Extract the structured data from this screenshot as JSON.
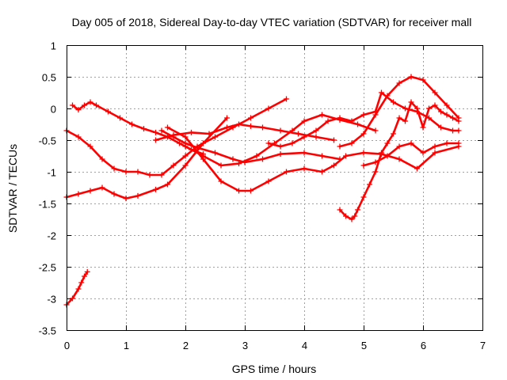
{
  "chart_data": {
    "type": "line",
    "title": "Day 005 of 2018, Sidereal Day-to-day VTEC variation (SDTVAR) for receiver mall",
    "xlabel": "GPS time / hours",
    "ylabel": "SDTVAR / TECUs",
    "xlim": [
      0,
      7
    ],
    "ylim": [
      -3.5,
      1
    ],
    "xticks": [
      0,
      1,
      2,
      3,
      4,
      5,
      6,
      7
    ],
    "yticks": [
      -3.5,
      -3,
      -2.5,
      -2,
      -1.5,
      -1,
      -0.5,
      0,
      0.5,
      1
    ],
    "xtick_labels": [
      "0",
      "1",
      "2",
      "3",
      "4",
      "5",
      "6",
      "7"
    ],
    "ytick_labels": [
      "-3.5",
      "-3",
      "-2.5",
      "-2",
      "-1.5",
      "-1",
      "-0.5",
      "0",
      "0.5",
      "1"
    ],
    "grid": true,
    "legend": "none",
    "series_color": "#ff0000",
    "marker": "cross",
    "series": [
      {
        "name": "s1",
        "x": [
          0.0,
          0.1,
          0.2,
          0.25,
          0.3,
          0.35
        ],
        "y": [
          -3.1,
          -3.0,
          -2.85,
          -2.75,
          -2.65,
          -2.58
        ]
      },
      {
        "name": "s2",
        "x": [
          0.1,
          0.2,
          0.3,
          0.4,
          0.5,
          0.7,
          0.9,
          1.1,
          1.3,
          1.5,
          1.7,
          1.9,
          2.1,
          2.3
        ],
        "y": [
          0.05,
          -0.02,
          0.05,
          0.1,
          0.05,
          -0.05,
          -0.15,
          -0.25,
          -0.32,
          -0.38,
          -0.45,
          -0.55,
          -0.65,
          -0.72
        ]
      },
      {
        "name": "s3",
        "x": [
          0.0,
          0.2,
          0.4,
          0.6,
          0.8,
          1.0,
          1.2,
          1.4,
          1.6,
          1.8,
          2.0,
          2.2,
          2.5,
          2.8,
          3.1,
          3.4,
          3.7
        ],
        "y": [
          -0.35,
          -0.45,
          -0.6,
          -0.8,
          -0.95,
          -1.0,
          -1.0,
          -1.05,
          -1.05,
          -0.9,
          -0.75,
          -0.6,
          -0.45,
          -0.3,
          -0.15,
          0.0,
          0.15
        ]
      },
      {
        "name": "s4",
        "x": [
          0.0,
          0.2,
          0.4,
          0.6,
          0.8,
          1.0,
          1.2,
          1.5,
          1.7,
          2.0,
          2.3,
          2.7
        ],
        "y": [
          -1.4,
          -1.35,
          -1.3,
          -1.25,
          -1.35,
          -1.42,
          -1.38,
          -1.28,
          -1.2,
          -0.9,
          -0.55,
          -0.15
        ]
      },
      {
        "name": "s5",
        "x": [
          1.6,
          1.8,
          2.0,
          2.2,
          2.5,
          2.8,
          3.0,
          3.3,
          3.6,
          4.0,
          4.3,
          4.6
        ],
        "y": [
          -0.35,
          -0.45,
          -0.55,
          -0.62,
          -0.7,
          -0.8,
          -0.85,
          -0.8,
          -0.72,
          -0.7,
          -0.75,
          -0.8
        ]
      },
      {
        "name": "s6",
        "x": [
          1.5,
          1.8,
          2.1,
          2.4,
          2.7,
          2.9,
          3.1,
          3.3,
          3.6,
          3.9,
          4.2,
          4.5
        ],
        "y": [
          -0.5,
          -0.42,
          -0.38,
          -0.4,
          -0.3,
          -0.25,
          -0.28,
          -0.3,
          -0.35,
          -0.4,
          -0.45,
          -0.5
        ]
      },
      {
        "name": "s7",
        "x": [
          2.0,
          2.3,
          2.6,
          2.9,
          3.2,
          3.5,
          3.8,
          4.0,
          4.3,
          4.6,
          4.9,
          5.2
        ],
        "y": [
          -0.6,
          -0.75,
          -0.9,
          -0.87,
          -0.75,
          -0.55,
          -0.35,
          -0.2,
          -0.1,
          -0.18,
          -0.25,
          -0.35
        ]
      },
      {
        "name": "s8",
        "x": [
          1.7,
          2.0,
          2.3,
          2.6,
          2.9,
          3.1,
          3.4,
          3.7,
          4.0,
          4.3,
          4.5,
          4.7,
          5.0,
          5.3,
          5.6,
          5.9,
          6.2,
          6.6
        ],
        "y": [
          -0.3,
          -0.45,
          -0.8,
          -1.15,
          -1.3,
          -1.3,
          -1.15,
          -1.0,
          -0.95,
          -1.0,
          -0.9,
          -0.75,
          -0.7,
          -0.72,
          -0.8,
          -0.95,
          -0.7,
          -0.6
        ]
      },
      {
        "name": "s9",
        "x": [
          3.4,
          3.6,
          3.8,
          4.0,
          4.2,
          4.4,
          4.6,
          4.8,
          5.0,
          5.2,
          5.3,
          5.5,
          5.7,
          5.9,
          6.1,
          6.3,
          6.5,
          6.6
        ],
        "y": [
          -0.55,
          -0.6,
          -0.55,
          -0.45,
          -0.35,
          -0.2,
          -0.15,
          -0.2,
          -0.1,
          -0.05,
          0.25,
          0.1,
          0.0,
          -0.05,
          -0.15,
          -0.3,
          -0.35,
          -0.35
        ]
      },
      {
        "name": "s10",
        "x": [
          4.6,
          4.8,
          5.0,
          5.2,
          5.4,
          5.6,
          5.8,
          6.0,
          6.2,
          6.4,
          6.6
        ],
        "y": [
          -0.6,
          -0.55,
          -0.4,
          -0.1,
          0.2,
          0.4,
          0.5,
          0.45,
          0.25,
          0.05,
          -0.15
        ]
      },
      {
        "name": "s11",
        "x": [
          4.6,
          4.7,
          4.8,
          4.85,
          4.9,
          5.0,
          5.1,
          5.2,
          5.3,
          5.4,
          5.5,
          5.6,
          5.7,
          5.8,
          5.9,
          6.0,
          6.1,
          6.2,
          6.3,
          6.4,
          6.5,
          6.6
        ],
        "y": [
          -1.6,
          -1.7,
          -1.75,
          -1.7,
          -1.6,
          -1.4,
          -1.2,
          -1.0,
          -0.7,
          -0.55,
          -0.4,
          -0.15,
          -0.2,
          0.1,
          0.0,
          -0.3,
          0.0,
          0.05,
          -0.05,
          -0.1,
          -0.15,
          -0.2
        ]
      },
      {
        "name": "s12",
        "x": [
          5.0,
          5.2,
          5.4,
          5.6,
          5.8,
          6.0,
          6.2,
          6.4,
          6.6
        ],
        "y": [
          -0.9,
          -0.85,
          -0.75,
          -0.6,
          -0.55,
          -0.7,
          -0.6,
          -0.55,
          -0.55
        ]
      }
    ]
  }
}
